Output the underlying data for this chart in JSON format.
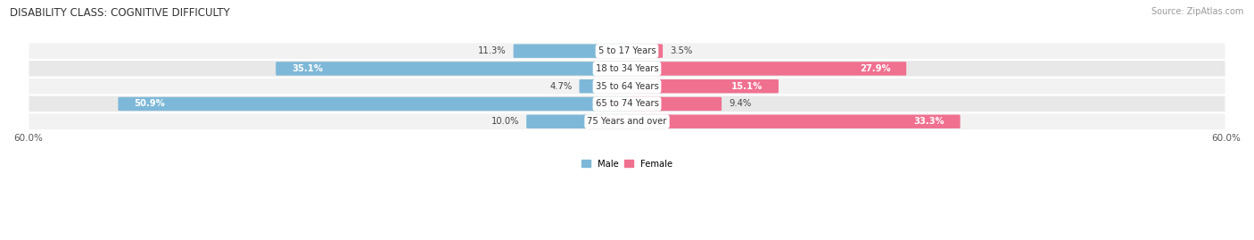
{
  "title": "DISABILITY CLASS: COGNITIVE DIFFICULTY",
  "source": "Source: ZipAtlas.com",
  "categories": [
    "5 to 17 Years",
    "18 to 34 Years",
    "35 to 64 Years",
    "65 to 74 Years",
    "75 Years and over"
  ],
  "male_values": [
    11.3,
    35.1,
    4.7,
    50.9,
    10.0
  ],
  "female_values": [
    3.5,
    27.9,
    15.1,
    9.4,
    33.3
  ],
  "male_color": "#7db8d8",
  "female_color": "#f07090",
  "male_label": "Male",
  "female_label": "Female",
  "axis_max": 60.0,
  "row_colors": [
    "#f2f2f2",
    "#e8e8e8"
  ],
  "title_fontsize": 8.5,
  "label_fontsize": 7.2,
  "tick_fontsize": 7.5,
  "source_fontsize": 7,
  "male_inside_threshold": 15,
  "female_inside_threshold": 12
}
